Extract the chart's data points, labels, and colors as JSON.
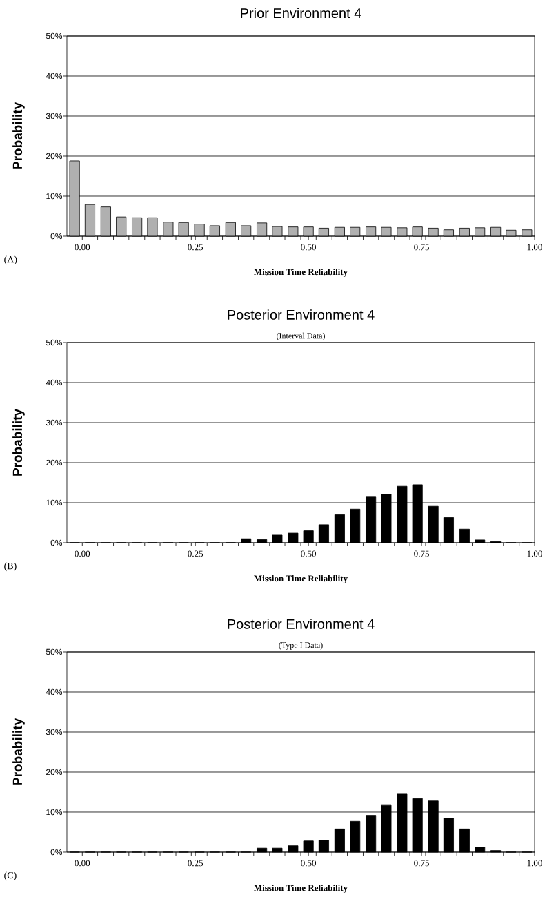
{
  "chart_data": [
    {
      "type": "bar",
      "title": "Prior Environment 4",
      "xlabel": "Mission Time Reliability",
      "ylabel": "Probability",
      "annotations": [
        "(A)"
      ],
      "color": "#b0b0b0",
      "x": [
        -0.017,
        0.017,
        0.052,
        0.086,
        0.121,
        0.155,
        0.19,
        0.224,
        0.259,
        0.293,
        0.328,
        0.362,
        0.397,
        0.431,
        0.466,
        0.5,
        0.534,
        0.569,
        0.603,
        0.638,
        0.672,
        0.707,
        0.741,
        0.776,
        0.81,
        0.845,
        0.879,
        0.914,
        0.948,
        0.983
      ],
      "values": [
        18.8,
        7.9,
        7.3,
        4.8,
        4.6,
        4.6,
        3.5,
        3.4,
        3.0,
        2.6,
        3.4,
        2.6,
        3.3,
        2.4,
        2.3,
        2.3,
        2.0,
        2.2,
        2.2,
        2.3,
        2.2,
        2.1,
        2.3,
        2.0,
        1.6,
        2.0,
        2.1,
        2.2,
        1.5,
        1.6
      ],
      "xlim": [
        -0.034,
        1.0
      ],
      "ylim": [
        0,
        50
      ],
      "xticks": [
        {
          "value": 0,
          "label": "0.00"
        },
        {
          "value": 0.034,
          "label": null
        },
        {
          "value": 0.069,
          "label": null
        },
        {
          "value": 0.103,
          "label": null
        },
        {
          "value": 0.138,
          "label": null
        },
        {
          "value": 0.172,
          "label": null
        },
        {
          "value": 0.207,
          "label": null
        },
        {
          "value": 0.241,
          "label": null
        },
        {
          "value": 0.25,
          "label": "0.25"
        },
        {
          "value": 0.276,
          "label": null
        },
        {
          "value": 0.31,
          "label": null
        },
        {
          "value": 0.345,
          "label": null
        },
        {
          "value": 0.379,
          "label": null
        },
        {
          "value": 0.414,
          "label": null
        },
        {
          "value": 0.448,
          "label": null
        },
        {
          "value": 0.483,
          "label": null
        },
        {
          "value": 0.5,
          "label": "0.50"
        },
        {
          "value": 0.517,
          "label": null
        },
        {
          "value": 0.552,
          "label": null
        },
        {
          "value": 0.586,
          "label": null
        },
        {
          "value": 0.621,
          "label": null
        },
        {
          "value": 0.655,
          "label": null
        },
        {
          "value": 0.69,
          "label": null
        },
        {
          "value": 0.724,
          "label": null
        },
        {
          "value": 0.75,
          "label": "0.75"
        },
        {
          "value": 0.759,
          "label": null
        },
        {
          "value": 0.793,
          "label": null
        },
        {
          "value": 0.828,
          "label": null
        },
        {
          "value": 0.862,
          "label": null
        },
        {
          "value": 0.897,
          "label": null
        },
        {
          "value": 0.931,
          "label": null
        },
        {
          "value": 0.966,
          "label": null
        },
        {
          "value": 1.0,
          "label": "1.00"
        }
      ],
      "yticks": [
        {
          "value": 0,
          "label": "0%"
        },
        {
          "value": 10,
          "label": "10%"
        },
        {
          "value": 20,
          "label": "20%"
        },
        {
          "value": 30,
          "label": "30%"
        },
        {
          "value": 40,
          "label": "40%"
        },
        {
          "value": 50,
          "label": "50%"
        }
      ],
      "grid": "y"
    },
    {
      "type": "bar",
      "title": "Posterior Environment 4",
      "subtitle": "(Interval Data)",
      "xlabel": "Mission Time Reliability",
      "ylabel": "Probability",
      "annotations": [
        "(B)"
      ],
      "color": "#000000",
      "x": [
        -0.017,
        0.017,
        0.052,
        0.086,
        0.121,
        0.155,
        0.19,
        0.224,
        0.259,
        0.293,
        0.328,
        0.362,
        0.397,
        0.431,
        0.466,
        0.5,
        0.534,
        0.569,
        0.603,
        0.638,
        0.672,
        0.707,
        0.741,
        0.776,
        0.81,
        0.845,
        0.879,
        0.914,
        0.948,
        0.983
      ],
      "values": [
        0,
        0,
        0,
        0,
        0,
        0,
        0,
        0,
        0,
        0,
        0,
        1.0,
        0.8,
        1.9,
        2.4,
        3.0,
        4.5,
        7.0,
        8.4,
        11.4,
        12.1,
        14.1,
        14.5,
        9.1,
        6.3,
        3.4,
        0.7,
        0.3,
        0,
        0
      ],
      "xlim": [
        -0.034,
        1.0
      ],
      "ylim": [
        0,
        50
      ],
      "xticks": [
        {
          "value": 0,
          "label": "0.00"
        },
        {
          "value": 0.034,
          "label": null
        },
        {
          "value": 0.069,
          "label": null
        },
        {
          "value": 0.103,
          "label": null
        },
        {
          "value": 0.138,
          "label": null
        },
        {
          "value": 0.172,
          "label": null
        },
        {
          "value": 0.207,
          "label": null
        },
        {
          "value": 0.241,
          "label": null
        },
        {
          "value": 0.25,
          "label": "0.25"
        },
        {
          "value": 0.276,
          "label": null
        },
        {
          "value": 0.31,
          "label": null
        },
        {
          "value": 0.345,
          "label": null
        },
        {
          "value": 0.379,
          "label": null
        },
        {
          "value": 0.414,
          "label": null
        },
        {
          "value": 0.448,
          "label": null
        },
        {
          "value": 0.483,
          "label": null
        },
        {
          "value": 0.5,
          "label": "0.50"
        },
        {
          "value": 0.517,
          "label": null
        },
        {
          "value": 0.552,
          "label": null
        },
        {
          "value": 0.586,
          "label": null
        },
        {
          "value": 0.621,
          "label": null
        },
        {
          "value": 0.655,
          "label": null
        },
        {
          "value": 0.69,
          "label": null
        },
        {
          "value": 0.724,
          "label": null
        },
        {
          "value": 0.75,
          "label": "0.75"
        },
        {
          "value": 0.759,
          "label": null
        },
        {
          "value": 0.793,
          "label": null
        },
        {
          "value": 0.828,
          "label": null
        },
        {
          "value": 0.862,
          "label": null
        },
        {
          "value": 0.897,
          "label": null
        },
        {
          "value": 0.931,
          "label": null
        },
        {
          "value": 0.966,
          "label": null
        },
        {
          "value": 1.0,
          "label": "1.00"
        }
      ],
      "yticks": [
        {
          "value": 0,
          "label": "0%"
        },
        {
          "value": 10,
          "label": "10%"
        },
        {
          "value": 20,
          "label": "20%"
        },
        {
          "value": 30,
          "label": "30%"
        },
        {
          "value": 40,
          "label": "40%"
        },
        {
          "value": 50,
          "label": "50%"
        }
      ],
      "grid": "y"
    },
    {
      "type": "bar",
      "title": "Posterior Environment 4",
      "subtitle": "(Type I Data)",
      "xlabel": "Mission Time Reliability",
      "ylabel": "Probability",
      "annotations": [
        "(C)"
      ],
      "color": "#000000",
      "x": [
        -0.017,
        0.017,
        0.052,
        0.086,
        0.121,
        0.155,
        0.19,
        0.224,
        0.259,
        0.293,
        0.328,
        0.362,
        0.397,
        0.431,
        0.466,
        0.5,
        0.534,
        0.569,
        0.603,
        0.638,
        0.672,
        0.707,
        0.741,
        0.776,
        0.81,
        0.845,
        0.879,
        0.914,
        0.948,
        0.983
      ],
      "values": [
        0,
        0,
        0,
        0,
        0,
        0,
        0,
        0,
        0,
        0,
        0,
        0,
        1.0,
        1.0,
        1.6,
        2.8,
        3.0,
        5.8,
        7.7,
        9.2,
        11.7,
        14.5,
        13.4,
        12.8,
        8.5,
        5.8,
        1.2,
        0.4,
        0,
        0
      ],
      "xlim": [
        -0.034,
        1.0
      ],
      "ylim": [
        0,
        50
      ],
      "xticks": [
        {
          "value": 0,
          "label": "0.00"
        },
        {
          "value": 0.034,
          "label": null
        },
        {
          "value": 0.069,
          "label": null
        },
        {
          "value": 0.103,
          "label": null
        },
        {
          "value": 0.138,
          "label": null
        },
        {
          "value": 0.172,
          "label": null
        },
        {
          "value": 0.207,
          "label": null
        },
        {
          "value": 0.241,
          "label": null
        },
        {
          "value": 0.25,
          "label": "0.25"
        },
        {
          "value": 0.276,
          "label": null
        },
        {
          "value": 0.31,
          "label": null
        },
        {
          "value": 0.345,
          "label": null
        },
        {
          "value": 0.379,
          "label": null
        },
        {
          "value": 0.414,
          "label": null
        },
        {
          "value": 0.448,
          "label": null
        },
        {
          "value": 0.483,
          "label": null
        },
        {
          "value": 0.5,
          "label": "0.50"
        },
        {
          "value": 0.517,
          "label": null
        },
        {
          "value": 0.552,
          "label": null
        },
        {
          "value": 0.586,
          "label": null
        },
        {
          "value": 0.621,
          "label": null
        },
        {
          "value": 0.655,
          "label": null
        },
        {
          "value": 0.69,
          "label": null
        },
        {
          "value": 0.724,
          "label": null
        },
        {
          "value": 0.75,
          "label": "0.75"
        },
        {
          "value": 0.759,
          "label": null
        },
        {
          "value": 0.793,
          "label": null
        },
        {
          "value": 0.828,
          "label": null
        },
        {
          "value": 0.862,
          "label": null
        },
        {
          "value": 0.897,
          "label": null
        },
        {
          "value": 0.931,
          "label": null
        },
        {
          "value": 0.966,
          "label": null
        },
        {
          "value": 1.0,
          "label": "1.00"
        }
      ],
      "yticks": [
        {
          "value": 0,
          "label": "0%"
        },
        {
          "value": 10,
          "label": "10%"
        },
        {
          "value": 20,
          "label": "20%"
        },
        {
          "value": 30,
          "label": "30%"
        },
        {
          "value": 40,
          "label": "40%"
        },
        {
          "value": 50,
          "label": "50%"
        }
      ],
      "grid": "y"
    }
  ]
}
